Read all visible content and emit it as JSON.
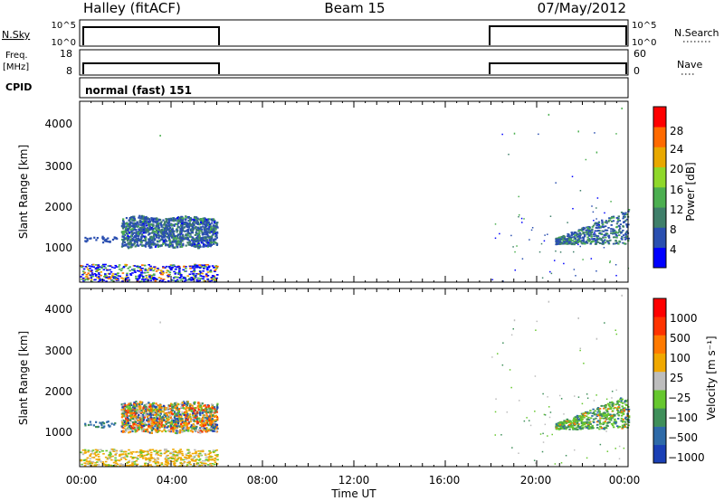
{
  "header": {
    "station": "Halley (fitACF)",
    "beam": "Beam 15",
    "date": "07/May/2012"
  },
  "noise_panel": {
    "left_label": "N.Sky",
    "right_label": "N.Search",
    "left_ticks": [
      "10^5",
      "10^0"
    ],
    "right_ticks": [
      "10^5",
      "10^0"
    ]
  },
  "freq_panel": {
    "left_label_line1": "Freq.",
    "left_label_line2": "[MHz]",
    "right_label": "Nave",
    "left_ticks": [
      "18",
      "8"
    ],
    "right_ticks": [
      "60",
      "0"
    ]
  },
  "cpid": {
    "label": "CPID",
    "value": "normal (fast) 151"
  },
  "power_panel": {
    "ylabel": "Slant Range [km]",
    "yticks": [
      "4000",
      "3000",
      "2000",
      "1000"
    ],
    "colorbar_label": "Power [dB]",
    "colorbar_ticks": [
      "28",
      "24",
      "20",
      "16",
      "12",
      "8",
      "4"
    ],
    "colors": [
      "#0000ff",
      "#2a4fb0",
      "#3f7f6a",
      "#4caf50",
      "#8fd82a",
      "#e8a800",
      "#ff6a00",
      "#ff0000"
    ]
  },
  "velocity_panel": {
    "ylabel": "Slant Range [km]",
    "yticks": [
      "4000",
      "3000",
      "2000",
      "1000"
    ],
    "colorbar_label": "Velocity [m s⁻¹]",
    "colorbar_ticks": [
      "1000",
      "500",
      "100",
      "25",
      "−25",
      "−100",
      "−500",
      "−1000"
    ],
    "colors": [
      "#1a3fb5",
      "#2e6aa8",
      "#3f8f5a",
      "#66c72e",
      "#bdbdbd",
      "#f0a800",
      "#ff7a00",
      "#ff3300",
      "#ff0000"
    ]
  },
  "xaxis": {
    "ticks": [
      "00:00",
      "04:00",
      "08:00",
      "12:00",
      "16:00",
      "20:00",
      "00:00"
    ],
    "label": "Time UT"
  },
  "chart_data": {
    "type": "heatmap",
    "x_unit": "hours UT",
    "xlim": [
      0,
      24
    ],
    "ylim": [
      180,
      4500
    ],
    "operating_periods": [
      [
        0,
        6
      ],
      [
        18,
        24
      ]
    ],
    "power_clusters": [
      {
        "t": [
          1.8,
          6.0
        ],
        "range": [
          1000,
          1800
        ],
        "dominant_db": [
          4,
          16
        ]
      },
      {
        "t": [
          0.0,
          6.0
        ],
        "range": [
          200,
          600
        ],
        "dominant_db": [
          4,
          24
        ]
      },
      {
        "t": [
          20.8,
          24.0
        ],
        "range": [
          1100,
          1800
        ],
        "dominant_db": [
          4,
          16
        ]
      }
    ],
    "velocity_clusters": [
      {
        "t": [
          1.8,
          6.0
        ],
        "range": [
          1000,
          1800
        ],
        "dominant_ms": [
          -500,
          500
        ]
      },
      {
        "t": [
          0.0,
          6.0
        ],
        "range": [
          200,
          600
        ],
        "dominant_ms": [
          -100,
          25
        ]
      },
      {
        "t": [
          20.8,
          24.0
        ],
        "range": [
          1100,
          1800
        ],
        "dominant_ms": [
          -25,
          500
        ]
      }
    ]
  }
}
